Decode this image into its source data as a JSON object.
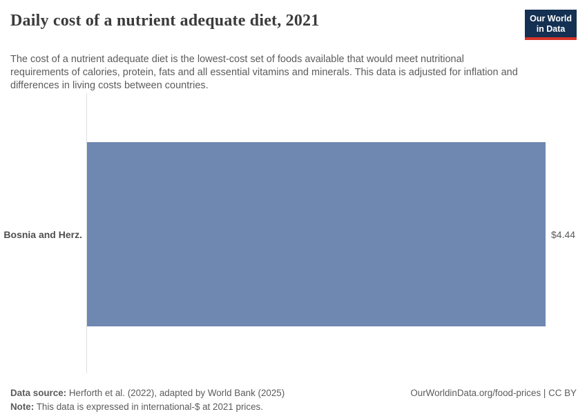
{
  "header": {
    "title": "Daily cost of a nutrient adequate diet, 2021",
    "subtitle": "The cost of a nutrient adequate diet is the lowest-cost set of foods available that would meet nutritional requirements of calories, protein, fats and all essential vitamins and minerals. This data is adjusted for inflation and differences in living costs between countries.",
    "logo": {
      "line1": "Our World",
      "line2": "in Data",
      "bg_color": "#143052",
      "accent_color": "#d7342a"
    }
  },
  "chart_data": {
    "type": "bar",
    "orientation": "horizontal",
    "title": "Daily cost of a nutrient adequate diet, 2021",
    "categories": [
      "Bosnia and Herz."
    ],
    "values": [
      4.44
    ],
    "value_labels": [
      "$4.44"
    ],
    "unit": "international-$ per day",
    "xlim": [
      0,
      4.44
    ],
    "bar_color": "#6f88b1",
    "axis_line_color": "#dedede",
    "grid": false,
    "legend": "none"
  },
  "footer": {
    "data_source_label": "Data source:",
    "data_source_text": " Herforth et al. (2022), adapted by World Bank (2025)",
    "note_label": "Note:",
    "note_text": " This data is expressed in international-$ at 2021 prices.",
    "attribution": "OurWorldinData.org/food-prices | CC BY"
  }
}
